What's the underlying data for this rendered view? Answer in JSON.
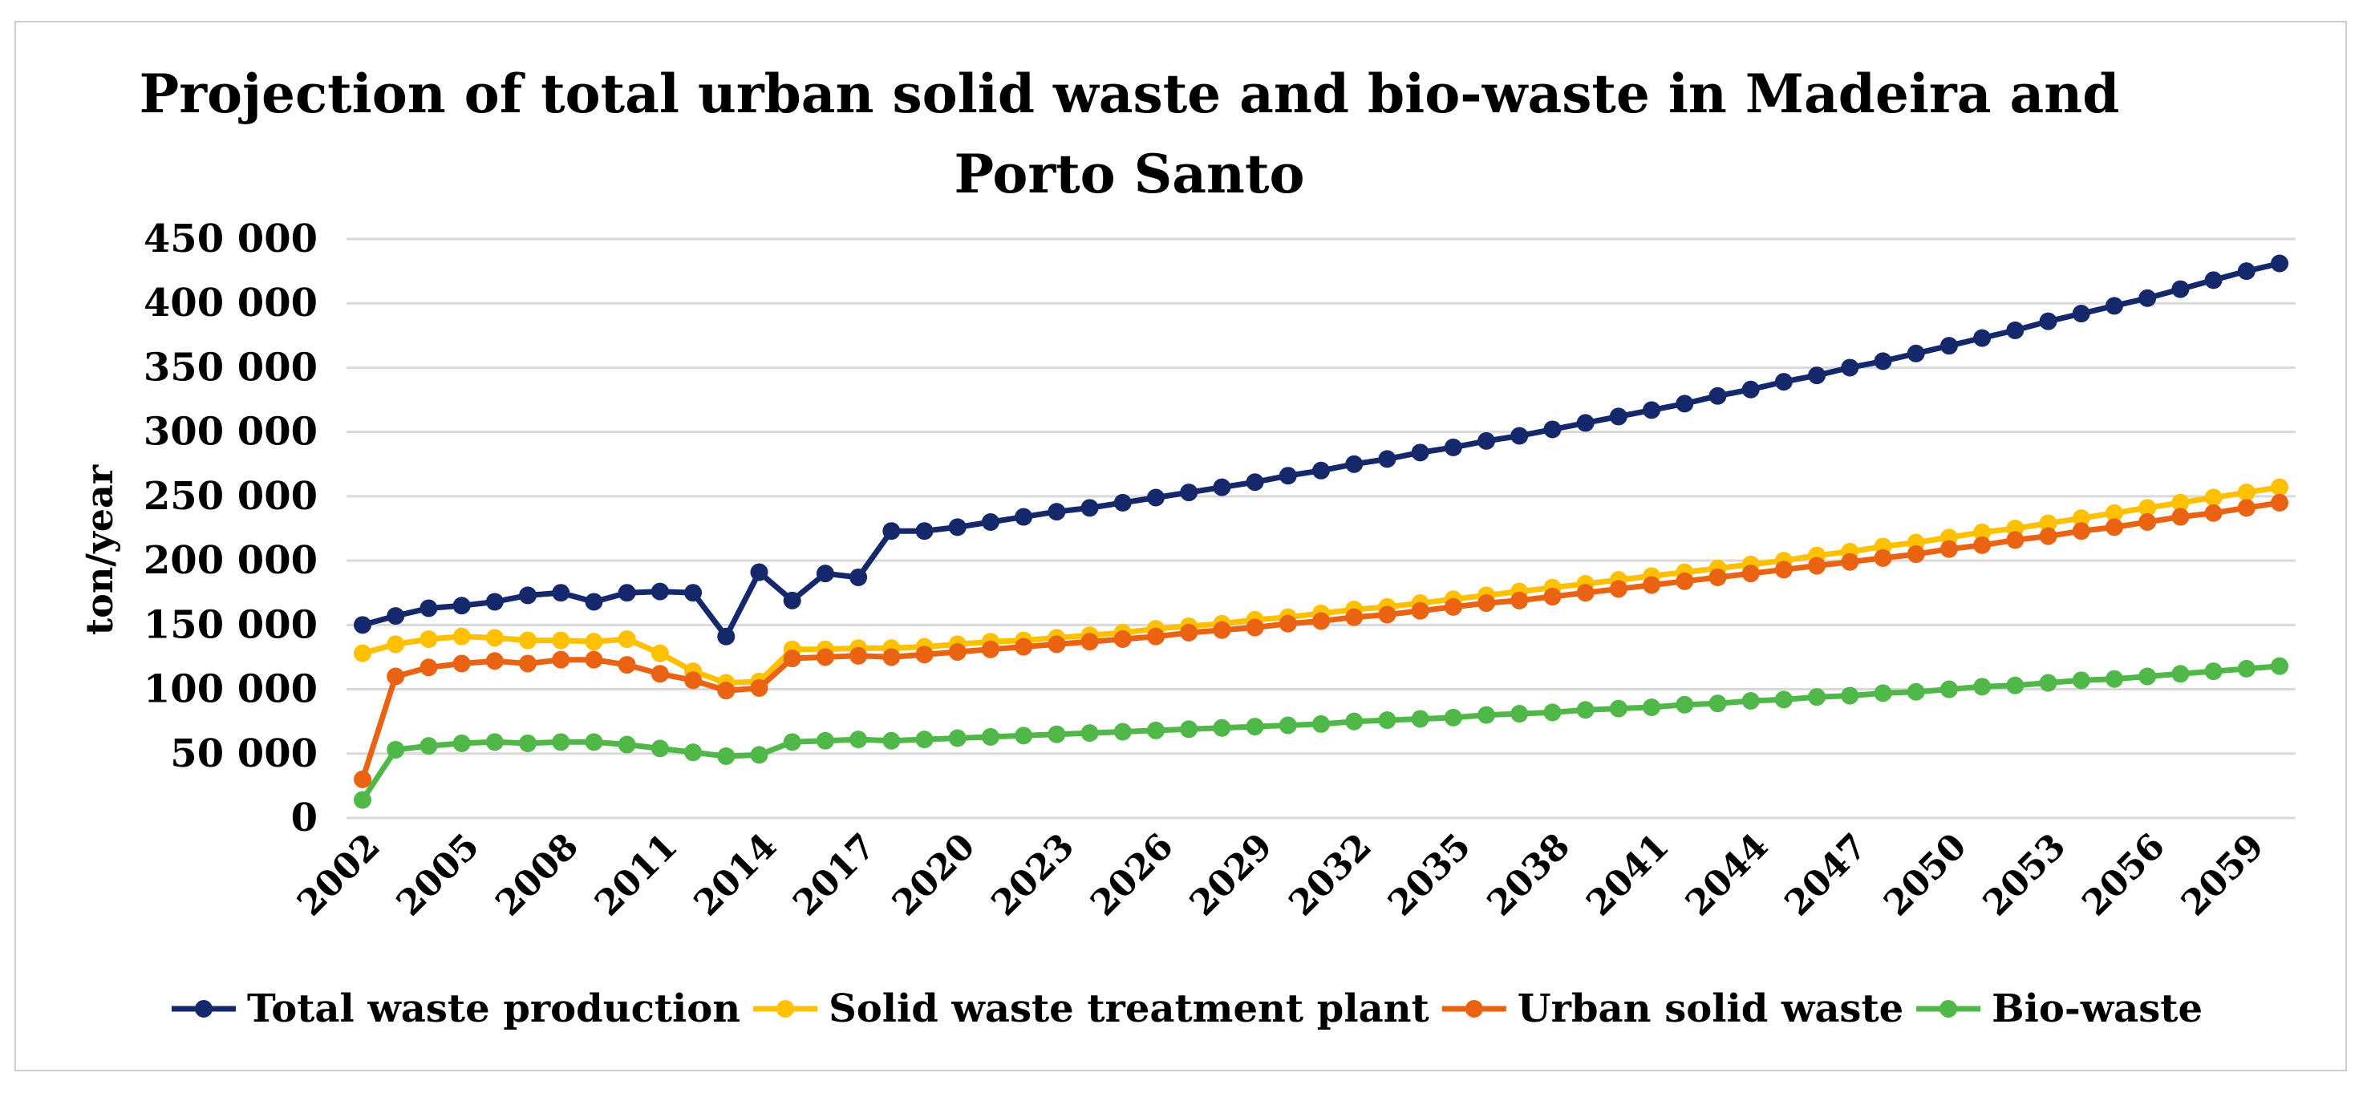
{
  "chart_data": {
    "type": "line",
    "title_lines": [
      "Projection of total urban solid waste and bio-waste in Madeira and",
      "Porto Santo"
    ],
    "ylabel": "ton/year",
    "xlabel": "",
    "ylim": [
      0,
      450000
    ],
    "yticks": [
      0,
      50000,
      100000,
      150000,
      200000,
      250000,
      300000,
      350000,
      400000,
      450000
    ],
    "ytick_labels": [
      "0",
      "50 000",
      "100 000",
      "150 000",
      "200 000",
      "250 000",
      "300 000",
      "350 000",
      "400 000",
      "450 000"
    ],
    "x_labels": [
      "2002",
      "2005",
      "2008",
      "2011",
      "2014",
      "2017",
      "2020",
      "2023",
      "2026",
      "2029",
      "2032",
      "2035",
      "2038",
      "2041",
      "2044",
      "2047",
      "2050",
      "2053",
      "2056",
      "2059"
    ],
    "grid": true,
    "legend_position": "bottom",
    "x": [
      2002,
      2003,
      2004,
      2005,
      2006,
      2007,
      2008,
      2009,
      2010,
      2011,
      2012,
      2013,
      2014,
      2015,
      2016,
      2017,
      2018,
      2019,
      2020,
      2021,
      2022,
      2023,
      2024,
      2025,
      2026,
      2027,
      2028,
      2029,
      2030,
      2031,
      2032,
      2033,
      2034,
      2035,
      2036,
      2037,
      2038,
      2039,
      2040,
      2041,
      2042,
      2043,
      2044,
      2045,
      2046,
      2047,
      2048,
      2049,
      2050,
      2051,
      2052,
      2053,
      2054,
      2055,
      2056,
      2057,
      2058,
      2059,
      2060
    ],
    "series": [
      {
        "name": "Total waste production",
        "color": "#14286b",
        "values": [
          150000,
          157000,
          163000,
          165000,
          168000,
          173000,
          175000,
          168000,
          175000,
          176000,
          175000,
          141000,
          191000,
          169000,
          190000,
          187000,
          223000,
          223000,
          226000,
          230000,
          234000,
          238000,
          241000,
          245000,
          249000,
          253000,
          257000,
          261000,
          266000,
          270000,
          275000,
          279000,
          284000,
          288000,
          293000,
          297000,
          302000,
          307000,
          312000,
          317000,
          322000,
          328000,
          333000,
          339000,
          344000,
          350000,
          355000,
          361000,
          367000,
          373000,
          379000,
          386000,
          392000,
          398000,
          404000,
          411000,
          418000,
          425000,
          431000
        ]
      },
      {
        "name": "Solid waste treatment plant",
        "color": "#ffc000",
        "values": [
          128000,
          135000,
          139000,
          141000,
          140000,
          138000,
          138000,
          137000,
          139000,
          128000,
          114000,
          105000,
          106000,
          131000,
          131000,
          132000,
          132000,
          133000,
          135000,
          137000,
          138000,
          140000,
          142000,
          144000,
          147000,
          149000,
          151000,
          154000,
          156000,
          159000,
          162000,
          164000,
          167000,
          170000,
          173000,
          176000,
          179000,
          182000,
          185000,
          188000,
          191000,
          194000,
          197000,
          200000,
          204000,
          207000,
          211000,
          214000,
          218000,
          222000,
          225000,
          229000,
          233000,
          237000,
          241000,
          245000,
          249000,
          253000,
          257000
        ]
      },
      {
        "name": "Urban solid waste",
        "color": "#ea6312",
        "values": [
          30000,
          110000,
          117000,
          120000,
          122000,
          120000,
          123000,
          123000,
          119000,
          112000,
          107000,
          99000,
          101000,
          124000,
          125000,
          126000,
          125000,
          127000,
          129000,
          131000,
          133000,
          135000,
          137000,
          139000,
          141000,
          144000,
          146000,
          148000,
          151000,
          153000,
          156000,
          158000,
          161000,
          164000,
          167000,
          169000,
          172000,
          175000,
          178000,
          181000,
          184000,
          187000,
          190000,
          193000,
          196000,
          199000,
          202000,
          205000,
          209000,
          212000,
          216000,
          219000,
          223000,
          226000,
          230000,
          234000,
          237000,
          241000,
          245000
        ]
      },
      {
        "name": "Bio-waste",
        "color": "#50b848",
        "values": [
          14000,
          53000,
          56000,
          58000,
          59000,
          58000,
          59000,
          59000,
          57000,
          54000,
          51000,
          48000,
          49000,
          59000,
          60000,
          61000,
          60000,
          61000,
          62000,
          63000,
          64000,
          65000,
          66000,
          67000,
          68000,
          69000,
          70000,
          71000,
          72000,
          73000,
          75000,
          76000,
          77000,
          78000,
          80000,
          81000,
          82000,
          84000,
          85000,
          86000,
          88000,
          89000,
          91000,
          92000,
          94000,
          95000,
          97000,
          98000,
          100000,
          102000,
          103000,
          105000,
          107000,
          108000,
          110000,
          112000,
          114000,
          116000,
          118000
        ]
      }
    ]
  }
}
